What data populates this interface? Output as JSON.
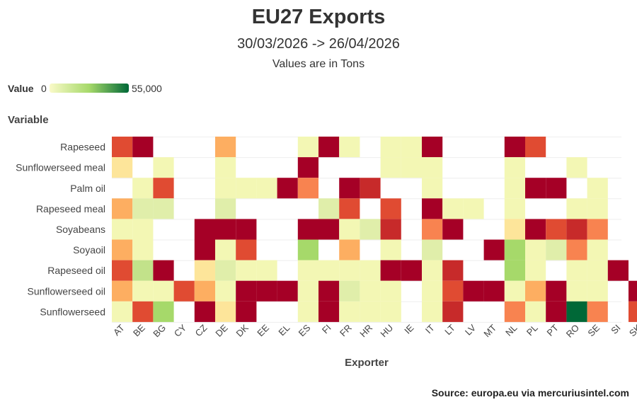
{
  "chart_data": {
    "type": "heatmap",
    "title": "EU27 Exports",
    "subtitle": "30/03/2026 -> 26/04/2026",
    "note": "Values are in Tons",
    "xlabel": "Exporter",
    "ylabel": "Variable",
    "legend": {
      "label": "Value",
      "min": 0,
      "max": 55000,
      "min_text": "0",
      "max_text": "55,000"
    },
    "colors": [
      "#fafac8",
      "#a6d96a",
      "#006837"
    ],
    "high_colors": [
      "#fdae61",
      "#f46d43",
      "#d73027",
      "#a50026"
    ],
    "x": [
      "AT",
      "BE",
      "BG",
      "CY",
      "CZ",
      "DE",
      "DK",
      "EE",
      "EL",
      "ES",
      "FI",
      "FR",
      "HR",
      "HU",
      "IE",
      "IT",
      "LT",
      "LV",
      "MT",
      "NL",
      "PL",
      "PT",
      "RO",
      "SE",
      "SI",
      "SK"
    ],
    "y": [
      "Rapeseed",
      "Sunflowerseed meal",
      "Palm oil",
      "Rapeseed meal",
      "Soyabeans",
      "Soyaoil",
      "Rapeseed oil",
      "Sunflowerseed oil",
      "Sunflowerseed"
    ],
    "cells": [
      [
        "Rapeseed",
        "AT",
        "orange-red"
      ],
      [
        "Rapeseed",
        "BE",
        "dark-red"
      ],
      [
        "Rapeseed",
        "DE",
        "light-orange"
      ],
      [
        "Rapeseed",
        "ES",
        "pale-yellow"
      ],
      [
        "Rapeseed",
        "FI",
        "dark-red"
      ],
      [
        "Rapeseed",
        "FR",
        "pale-yellow"
      ],
      [
        "Rapeseed",
        "HU",
        "pale-yellow"
      ],
      [
        "Rapeseed",
        "IE",
        "pale-yellow"
      ],
      [
        "Rapeseed",
        "IT",
        "dark-red"
      ],
      [
        "Rapeseed",
        "NL",
        "dark-red"
      ],
      [
        "Rapeseed",
        "PL",
        "orange-red"
      ],
      [
        "Sunflowerseed meal",
        "AT",
        "light-yellow"
      ],
      [
        "Sunflowerseed meal",
        "BG",
        "pale-yellow"
      ],
      [
        "Sunflowerseed meal",
        "DE",
        "pale-yellow"
      ],
      [
        "Sunflowerseed meal",
        "ES",
        "dark-red"
      ],
      [
        "Sunflowerseed meal",
        "HU",
        "pale-yellow"
      ],
      [
        "Sunflowerseed meal",
        "IE",
        "pale-yellow"
      ],
      [
        "Sunflowerseed meal",
        "IT",
        "pale-yellow"
      ],
      [
        "Sunflowerseed meal",
        "NL",
        "pale-yellow"
      ],
      [
        "Sunflowerseed meal",
        "RO",
        "pale-yellow"
      ],
      [
        "Palm oil",
        "BE",
        "pale-yellow"
      ],
      [
        "Palm oil",
        "BG",
        "orange-red"
      ],
      [
        "Palm oil",
        "DE",
        "pale-yellow"
      ],
      [
        "Palm oil",
        "DK",
        "pale-yellow"
      ],
      [
        "Palm oil",
        "EE",
        "pale-yellow"
      ],
      [
        "Palm oil",
        "EL",
        "dark-red"
      ],
      [
        "Palm oil",
        "ES",
        "orange"
      ],
      [
        "Palm oil",
        "FR",
        "dark-red"
      ],
      [
        "Palm oil",
        "HR",
        "red"
      ],
      [
        "Palm oil",
        "IT",
        "pale-yellow"
      ],
      [
        "Palm oil",
        "NL",
        "pale-yellow"
      ],
      [
        "Palm oil",
        "PL",
        "dark-red"
      ],
      [
        "Palm oil",
        "PT",
        "dark-red"
      ],
      [
        "Palm oil",
        "SE",
        "pale-yellow"
      ],
      [
        "Rapeseed meal",
        "AT",
        "light-orange"
      ],
      [
        "Rapeseed meal",
        "BE",
        "pale-green"
      ],
      [
        "Rapeseed meal",
        "BG",
        "pale-green"
      ],
      [
        "Rapeseed meal",
        "DE",
        "pale-green"
      ],
      [
        "Rapeseed meal",
        "FI",
        "pale-green"
      ],
      [
        "Rapeseed meal",
        "FR",
        "orange-red"
      ],
      [
        "Rapeseed meal",
        "HU",
        "orange-red"
      ],
      [
        "Rapeseed meal",
        "IT",
        "dark-red"
      ],
      [
        "Rapeseed meal",
        "LT",
        "pale-yellow"
      ],
      [
        "Rapeseed meal",
        "LV",
        "pale-yellow"
      ],
      [
        "Rapeseed meal",
        "NL",
        "pale-yellow"
      ],
      [
        "Rapeseed meal",
        "RO",
        "pale-yellow"
      ],
      [
        "Rapeseed meal",
        "SE",
        "pale-yellow"
      ],
      [
        "Soyabeans",
        "AT",
        "pale-yellow"
      ],
      [
        "Soyabeans",
        "BE",
        "pale-yellow"
      ],
      [
        "Soyabeans",
        "CZ",
        "dark-red"
      ],
      [
        "Soyabeans",
        "DE",
        "dark-red"
      ],
      [
        "Soyabeans",
        "DK",
        "dark-red"
      ],
      [
        "Soyabeans",
        "ES",
        "dark-red"
      ],
      [
        "Soyabeans",
        "FI",
        "dark-red"
      ],
      [
        "Soyabeans",
        "FR",
        "pale-yellow"
      ],
      [
        "Soyabeans",
        "HR",
        "pale-green"
      ],
      [
        "Soyabeans",
        "HU",
        "red"
      ],
      [
        "Soyabeans",
        "IT",
        "orange"
      ],
      [
        "Soyabeans",
        "LT",
        "dark-red"
      ],
      [
        "Soyabeans",
        "NL",
        "light-yellow"
      ],
      [
        "Soyabeans",
        "PL",
        "dark-red"
      ],
      [
        "Soyabeans",
        "PT",
        "orange-red"
      ],
      [
        "Soyabeans",
        "RO",
        "red"
      ],
      [
        "Soyabeans",
        "SE",
        "orange"
      ],
      [
        "Soyaoil",
        "AT",
        "light-orange"
      ],
      [
        "Soyaoil",
        "BE",
        "pale-yellow"
      ],
      [
        "Soyaoil",
        "CZ",
        "dark-red"
      ],
      [
        "Soyaoil",
        "DE",
        "pale-yellow"
      ],
      [
        "Soyaoil",
        "DK",
        "orange-red"
      ],
      [
        "Soyaoil",
        "ES",
        "green"
      ],
      [
        "Soyaoil",
        "FR",
        "light-orange"
      ],
      [
        "Soyaoil",
        "HU",
        "pale-yellow"
      ],
      [
        "Soyaoil",
        "IT",
        "pale-green"
      ],
      [
        "Soyaoil",
        "MT",
        "dark-red"
      ],
      [
        "Soyaoil",
        "NL",
        "green"
      ],
      [
        "Soyaoil",
        "PL",
        "pale-yellow"
      ],
      [
        "Soyaoil",
        "PT",
        "pale-green"
      ],
      [
        "Soyaoil",
        "RO",
        "orange"
      ],
      [
        "Soyaoil",
        "SE",
        "pale-yellow"
      ],
      [
        "Rapeseed oil",
        "AT",
        "orange-red"
      ],
      [
        "Rapeseed oil",
        "BE",
        "light-green"
      ],
      [
        "Rapeseed oil",
        "BG",
        "dark-red"
      ],
      [
        "Rapeseed oil",
        "CZ",
        "light-yellow"
      ],
      [
        "Rapeseed oil",
        "DE",
        "pale-green"
      ],
      [
        "Rapeseed oil",
        "DK",
        "pale-yellow"
      ],
      [
        "Rapeseed oil",
        "EE",
        "pale-yellow"
      ],
      [
        "Rapeseed oil",
        "ES",
        "pale-yellow"
      ],
      [
        "Rapeseed oil",
        "FI",
        "pale-yellow"
      ],
      [
        "Rapeseed oil",
        "FR",
        "pale-yellow"
      ],
      [
        "Rapeseed oil",
        "HR",
        "pale-yellow"
      ],
      [
        "Rapeseed oil",
        "HU",
        "dark-red"
      ],
      [
        "Rapeseed oil",
        "IE",
        "dark-red"
      ],
      [
        "Rapeseed oil",
        "IT",
        "pale-yellow"
      ],
      [
        "Rapeseed oil",
        "LT",
        "red"
      ],
      [
        "Rapeseed oil",
        "NL",
        "green"
      ],
      [
        "Rapeseed oil",
        "PL",
        "pale-yellow"
      ],
      [
        "Rapeseed oil",
        "RO",
        "pale-yellow"
      ],
      [
        "Rapeseed oil",
        "SE",
        "pale-yellow"
      ],
      [
        "Rapeseed oil",
        "SI",
        "dark-red"
      ],
      [
        "Sunflowerseed oil",
        "AT",
        "light-orange"
      ],
      [
        "Sunflowerseed oil",
        "BE",
        "pale-yellow"
      ],
      [
        "Sunflowerseed oil",
        "BG",
        "pale-yellow"
      ],
      [
        "Sunflowerseed oil",
        "CY",
        "orange-red"
      ],
      [
        "Sunflowerseed oil",
        "CZ",
        "light-orange"
      ],
      [
        "Sunflowerseed oil",
        "DE",
        "pale-yellow"
      ],
      [
        "Sunflowerseed oil",
        "DK",
        "dark-red"
      ],
      [
        "Sunflowerseed oil",
        "EE",
        "dark-red"
      ],
      [
        "Sunflowerseed oil",
        "EL",
        "dark-red"
      ],
      [
        "Sunflowerseed oil",
        "ES",
        "pale-yellow"
      ],
      [
        "Sunflowerseed oil",
        "FI",
        "dark-red"
      ],
      [
        "Sunflowerseed oil",
        "FR",
        "pale-green"
      ],
      [
        "Sunflowerseed oil",
        "HR",
        "pale-yellow"
      ],
      [
        "Sunflowerseed oil",
        "HU",
        "pale-yellow"
      ],
      [
        "Sunflowerseed oil",
        "IT",
        "pale-yellow"
      ],
      [
        "Sunflowerseed oil",
        "LT",
        "orange-red"
      ],
      [
        "Sunflowerseed oil",
        "LV",
        "dark-red"
      ],
      [
        "Sunflowerseed oil",
        "MT",
        "dark-red"
      ],
      [
        "Sunflowerseed oil",
        "NL",
        "pale-yellow"
      ],
      [
        "Sunflowerseed oil",
        "PL",
        "light-orange"
      ],
      [
        "Sunflowerseed oil",
        "PT",
        "dark-red"
      ],
      [
        "Sunflowerseed oil",
        "RO",
        "pale-yellow"
      ],
      [
        "Sunflowerseed oil",
        "SE",
        "pale-yellow"
      ],
      [
        "Sunflowerseed oil",
        "SK",
        "dark-red"
      ],
      [
        "Sunflowerseed",
        "AT",
        "pale-yellow"
      ],
      [
        "Sunflowerseed",
        "BE",
        "orange-red"
      ],
      [
        "Sunflowerseed",
        "BG",
        "green"
      ],
      [
        "Sunflowerseed",
        "CZ",
        "dark-red"
      ],
      [
        "Sunflowerseed",
        "DE",
        "light-yellow"
      ],
      [
        "Sunflowerseed",
        "DK",
        "dark-red"
      ],
      [
        "Sunflowerseed",
        "ES",
        "pale-yellow"
      ],
      [
        "Sunflowerseed",
        "FI",
        "dark-red"
      ],
      [
        "Sunflowerseed",
        "FR",
        "pale-yellow"
      ],
      [
        "Sunflowerseed",
        "HR",
        "pale-yellow"
      ],
      [
        "Sunflowerseed",
        "HU",
        "pale-yellow"
      ],
      [
        "Sunflowerseed",
        "IT",
        "pale-yellow"
      ],
      [
        "Sunflowerseed",
        "LT",
        "red"
      ],
      [
        "Sunflowerseed",
        "NL",
        "orange"
      ],
      [
        "Sunflowerseed",
        "PL",
        "pale-yellow"
      ],
      [
        "Sunflowerseed",
        "PT",
        "dark-red"
      ],
      [
        "Sunflowerseed",
        "RO",
        "dark-green"
      ],
      [
        "Sunflowerseed",
        "SE",
        "orange"
      ],
      [
        "Sunflowerseed",
        "SK",
        "orange-red"
      ]
    ],
    "palette": {
      "pale-yellow": "#f3f7b4",
      "light-yellow": "#fde59a",
      "pale-green": "#e0eeaa",
      "light-green": "#c2e28a",
      "green": "#a6d96a",
      "dark-green": "#006837",
      "light-orange": "#fdae61",
      "orange": "#f88350",
      "orange-red": "#e04b32",
      "red": "#c72a2a",
      "dark-red": "#a50026"
    },
    "grid": true
  },
  "source": "Source: europa.eu via mercuriusintel.com"
}
